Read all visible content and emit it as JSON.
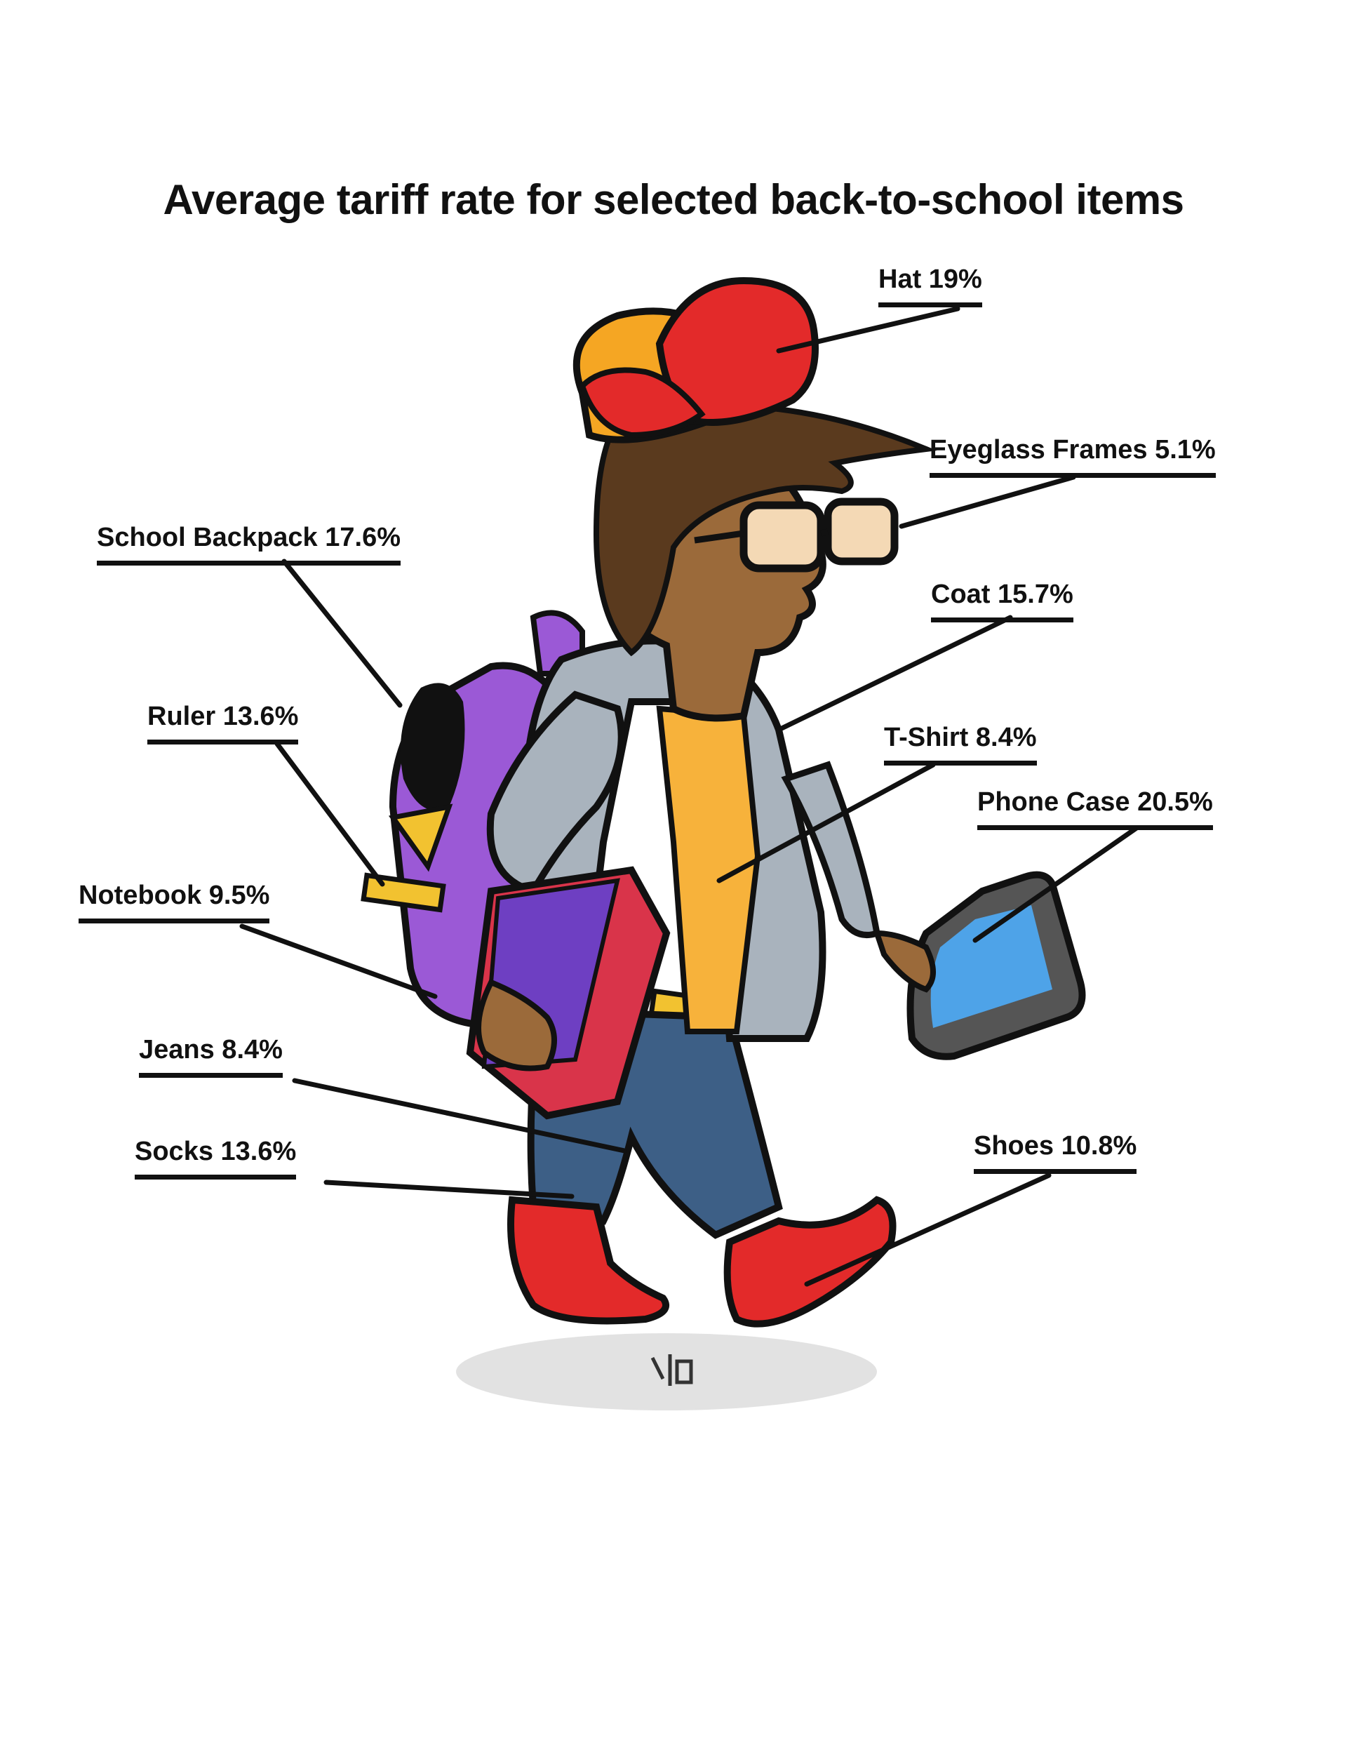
{
  "title": "Average tariff rate for selected back-to-school items",
  "items": [
    {
      "label": "Hat 19%",
      "icon": "hat-icon"
    },
    {
      "label": "Eyeglass Frames 5.1%",
      "icon": "eyeglasses-icon"
    },
    {
      "label": "School Backpack 17.6%",
      "icon": "backpack-icon"
    },
    {
      "label": "Coat 15.7%",
      "icon": "coat-icon"
    },
    {
      "label": "Ruler 13.6%",
      "icon": "ruler-icon"
    },
    {
      "label": "T-Shirt 8.4%",
      "icon": "tshirt-icon"
    },
    {
      "label": "Phone Case 20.5%",
      "icon": "phone-icon"
    },
    {
      "label": "Notebook 9.5%",
      "icon": "notebook-icon"
    },
    {
      "label": "Jeans 8.4%",
      "icon": "jeans-icon"
    },
    {
      "label": "Socks 13.6%",
      "icon": "socks-icon"
    },
    {
      "label": "Shoes 10.8%",
      "icon": "shoes-icon"
    }
  ],
  "colors": {
    "hat": "#e8262b",
    "hat_brim": "#f5a623",
    "hair": "#5a3a1e",
    "skin": "#9b6a3a",
    "glasses_lens": "#f4d9b5",
    "backpack": "#9b59d6",
    "coat": "#a9b3bd",
    "tshirt": "#f7b23b",
    "jeans": "#3d5f86",
    "notebook": "#d9344a",
    "phone_screen": "#4ea3e8",
    "ruler": "#f2c230",
    "shoes": "#e32a2a",
    "outline": "#111111"
  }
}
